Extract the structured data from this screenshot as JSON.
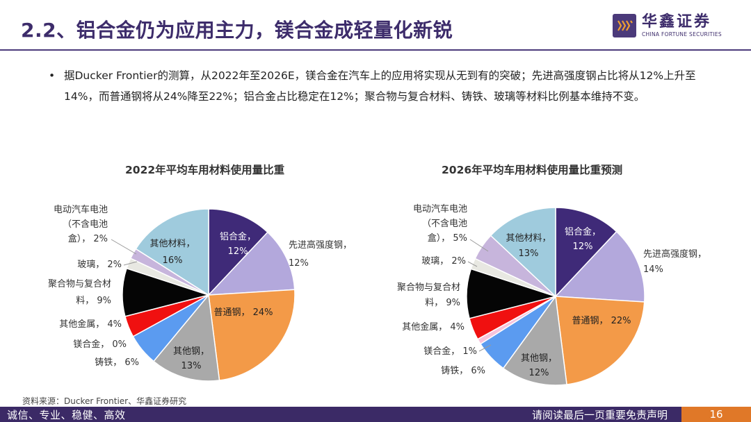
{
  "header": {
    "title": "2.2、铝合金仍为应用主力，镁合金成轻量化新锐",
    "logo_cn": "华鑫证券",
    "logo_en": "CHINA FORTUNE SECURITIES"
  },
  "bullet": {
    "dot": "•",
    "text": "据Ducker Frontier的测算，从2022年至2026E，镁合金在汽车上的应用将实现从无到有的突破；先进高强度钢占比将从12%上升至14%，而普通钢将从24%降至22%；铝合金占比稳定在12%；聚合物与复合材料、铸铁、玻璃等材料比例基本维持不变。"
  },
  "chart_data": [
    {
      "type": "pie",
      "title": "2022年平均车用材料使用量比重",
      "slices": [
        {
          "label": "铝合金",
          "value": 12,
          "value_text": "12%",
          "color": "#3f2a78"
        },
        {
          "label": "先进高强度钢",
          "value": 12,
          "value_text": "12%",
          "color": "#b3a8dc"
        },
        {
          "label": "普通钢",
          "value": 24,
          "value_text": "24%",
          "color": "#f39a48"
        },
        {
          "label": "其他钢",
          "value": 13,
          "value_text": "13%",
          "color": "#a9a9a9"
        },
        {
          "label": "铸铁",
          "value": 6,
          "value_text": "6%",
          "color": "#5b9bf0"
        },
        {
          "label": "镁合金",
          "value": 0,
          "value_text": "0%",
          "color": "#f7c3dc"
        },
        {
          "label": "其他金属",
          "value": 4,
          "value_text": "4%",
          "color": "#f01010"
        },
        {
          "label": "聚合物与复合材料",
          "value": 9,
          "value_text": "9%",
          "color": "#050505"
        },
        {
          "label": "玻璃",
          "value": 2,
          "value_text": "2%",
          "color": "#e8e8e2"
        },
        {
          "label": "电动汽车电池（不含电池盒）",
          "value": 2,
          "value_text": "2%",
          "color": "#c7b5dc"
        },
        {
          "label": "其他材料",
          "value": 16,
          "value_text": "16%",
          "color": "#9fcbdd"
        }
      ]
    },
    {
      "type": "pie",
      "title": "2026年平均车用材料使用量比重预测",
      "slices": [
        {
          "label": "铝合金",
          "value": 12,
          "value_text": "12%",
          "color": "#3f2a78"
        },
        {
          "label": "先进高强度钢",
          "value": 14,
          "value_text": "14%",
          "color": "#b3a8dc"
        },
        {
          "label": "普通钢",
          "value": 22,
          "value_text": "22%",
          "color": "#f39a48"
        },
        {
          "label": "其他钢",
          "value": 12,
          "value_text": "12%",
          "color": "#a9a9a9"
        },
        {
          "label": "铸铁",
          "value": 6,
          "value_text": "6%",
          "color": "#5b9bf0"
        },
        {
          "label": "镁合金",
          "value": 1,
          "value_text": "1%",
          "color": "#f7c3dc"
        },
        {
          "label": "其他金属",
          "value": 4,
          "value_text": "4%",
          "color": "#f01010"
        },
        {
          "label": "聚合物与复合材料",
          "value": 9,
          "value_text": "9%",
          "color": "#050505"
        },
        {
          "label": "玻璃",
          "value": 2,
          "value_text": "2%",
          "color": "#e8e8e2"
        },
        {
          "label": "电动汽车电池（不含电池盒）",
          "value": 5,
          "value_text": "5%",
          "color": "#c7b5dc"
        },
        {
          "label": "其他材料",
          "value": 13,
          "value_text": "13%",
          "color": "#9fcbdd"
        }
      ]
    }
  ],
  "source": "资料来源：Ducker Frontier、华鑫证券研究",
  "footer": {
    "left": "诚信、专业、稳健、高效",
    "right": "请阅读最后一页重要免责声明",
    "page": "16"
  }
}
